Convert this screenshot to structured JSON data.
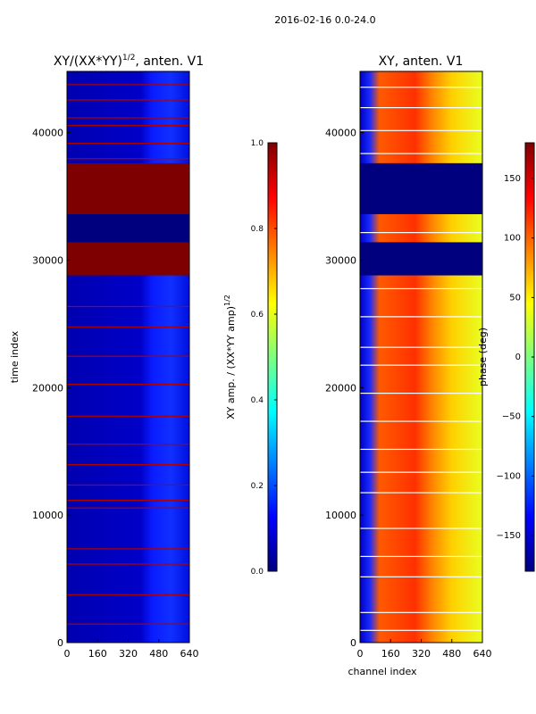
{
  "suptitle": "2016-02-16 0.0-24.0",
  "colors": {
    "jet": [
      "#00007f",
      "#0000ff",
      "#007fff",
      "#00ffff",
      "#7fff7f",
      "#ffff00",
      "#ff7f00",
      "#ff0000",
      "#7f0000"
    ]
  },
  "chart_data": [
    {
      "type": "heatmap",
      "title_main": "XY/(XX*YY)",
      "title_sup": "1/2",
      "title_tail": ", anten. V1",
      "xlabel": "",
      "ylabel": "time index",
      "xlim": [
        0,
        640
      ],
      "ylim": [
        0,
        44800
      ],
      "xticks": [
        0,
        160,
        320,
        480,
        640
      ],
      "yticks": [
        0,
        10000,
        20000,
        30000,
        40000
      ],
      "colorbar": {
        "label": "XY amp. / (XX*YY amp)",
        "label_sup": "1/2",
        "range": [
          0,
          1
        ],
        "ticks": [
          "0.0",
          "0.2",
          "0.4",
          "0.6",
          "0.8",
          "1.0"
        ]
      },
      "saturated_bands": [
        [
          28800,
          31400
        ],
        [
          33600,
          37600
        ]
      ],
      "low_bands": [
        [
          31400,
          33600
        ]
      ],
      "flagged_rows": [
        1500,
        3800,
        6200,
        7400,
        10600,
        11200,
        12400,
        14000,
        15600,
        17800,
        20300,
        22500,
        24800,
        26400,
        38000,
        39200,
        40600,
        41200,
        42600,
        43800
      ]
    },
    {
      "type": "heatmap",
      "title_main": "XY, anten. V1",
      "xlabel": "channel index",
      "ylabel": "",
      "xlim": [
        0,
        640
      ],
      "ylim": [
        0,
        44800
      ],
      "xticks": [
        0,
        160,
        320,
        480,
        640
      ],
      "yticks": [
        0,
        10000,
        20000,
        30000,
        40000
      ],
      "colorbar": {
        "label": "phase (deg)",
        "range": [
          -180,
          180
        ],
        "ticks": [
          "−150",
          "−100",
          "−50",
          "0",
          "50",
          "100",
          "150"
        ],
        "tick_values": [
          -150,
          -100,
          -50,
          0,
          50,
          100,
          150
        ]
      },
      "low_bands": [
        [
          28800,
          31400
        ],
        [
          33600,
          37600
        ]
      ],
      "flagged_rows": [
        1000,
        2400,
        5200,
        6800,
        9000,
        11800,
        13400,
        15200,
        17400,
        19600,
        21800,
        23200,
        25600,
        27800,
        32200,
        38400,
        40200,
        42000,
        43600
      ]
    }
  ]
}
